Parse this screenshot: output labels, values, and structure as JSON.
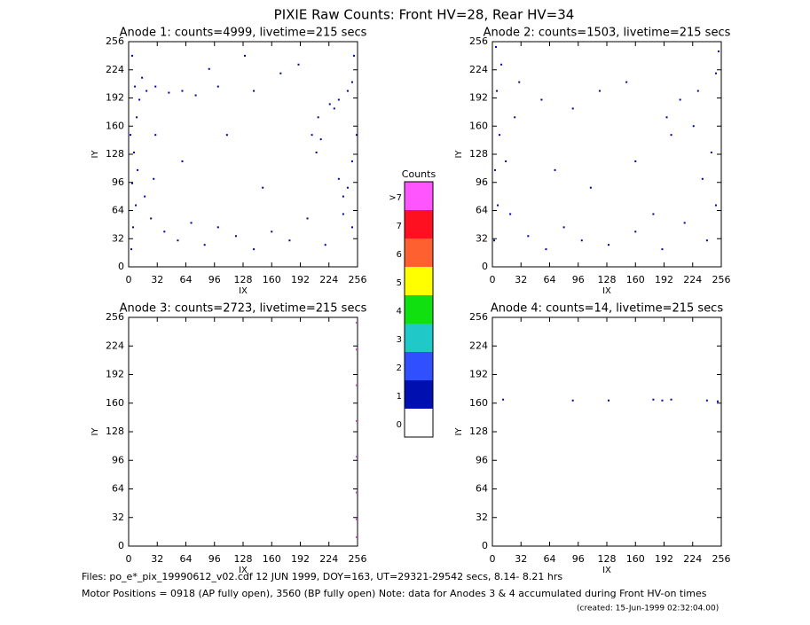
{
  "title": "PIXIE Raw Counts:  Front HV=28, Rear HV=34",
  "chart_data": [
    {
      "type": "scatter",
      "title": "Anode 1: counts=4999, livetime=215 secs",
      "x_label": "IX",
      "y_label": "IY",
      "color": "#0000a0",
      "xlim": [
        0,
        256
      ],
      "ylim": [
        0,
        256
      ],
      "xticks": [
        0,
        32,
        64,
        96,
        128,
        160,
        192,
        224,
        256
      ],
      "yticks": [
        0,
        32,
        64,
        96,
        128,
        160,
        192,
        224,
        256
      ],
      "x": [
        3,
        5,
        8,
        4,
        10,
        6,
        2,
        9,
        12,
        7,
        15,
        4,
        20,
        30,
        45,
        60,
        75,
        25,
        40,
        55,
        70,
        85,
        100,
        120,
        140,
        160,
        180,
        200,
        220,
        240,
        250,
        245,
        235,
        250,
        240,
        210,
        205,
        212,
        225,
        235,
        245,
        250,
        230,
        215,
        255,
        252,
        90,
        130,
        170,
        110,
        60,
        150,
        30,
        18,
        28,
        190,
        100,
        140
      ],
      "y": [
        20,
        45,
        70,
        95,
        110,
        130,
        150,
        170,
        190,
        205,
        215,
        240,
        200,
        205,
        198,
        200,
        195,
        55,
        40,
        30,
        50,
        25,
        45,
        35,
        20,
        40,
        30,
        55,
        25,
        60,
        45,
        90,
        100,
        120,
        80,
        130,
        150,
        170,
        185,
        190,
        200,
        210,
        180,
        145,
        150,
        240,
        225,
        240,
        220,
        150,
        120,
        90,
        150,
        80,
        100,
        230,
        205,
        200
      ]
    },
    {
      "type": "scatter",
      "title": "Anode 2: counts=1503, livetime=215 secs",
      "x_label": "IX",
      "y_label": "IY",
      "color": "#0000a0",
      "xlim": [
        0,
        256
      ],
      "ylim": [
        0,
        256
      ],
      "xticks": [
        0,
        32,
        64,
        96,
        128,
        160,
        192,
        224,
        256
      ],
      "yticks": [
        0,
        32,
        64,
        96,
        128,
        160,
        192,
        224,
        256
      ],
      "x": [
        2,
        6,
        3,
        8,
        5,
        10,
        4,
        20,
        40,
        60,
        80,
        100,
        130,
        160,
        190,
        215,
        240,
        250,
        235,
        245,
        200,
        195,
        210,
        230,
        250,
        253,
        225,
        30,
        55,
        90,
        120,
        150,
        70,
        110,
        160,
        180,
        15,
        25
      ],
      "y": [
        30,
        70,
        110,
        150,
        200,
        230,
        250,
        60,
        35,
        20,
        45,
        30,
        25,
        40,
        20,
        50,
        30,
        70,
        100,
        130,
        150,
        170,
        190,
        200,
        220,
        245,
        160,
        210,
        190,
        180,
        200,
        210,
        110,
        90,
        120,
        60,
        120,
        170
      ]
    },
    {
      "type": "scatter",
      "title": "Anode 3: counts=2723, livetime=215 secs",
      "x_label": "IX",
      "y_label": "IY",
      "color": "#c040c0",
      "xlim": [
        0,
        256
      ],
      "ylim": [
        0,
        256
      ],
      "xticks": [
        0,
        32,
        64,
        96,
        128,
        160,
        192,
        224,
        256
      ],
      "yticks": [
        0,
        32,
        64,
        96,
        128,
        160,
        192,
        224,
        256
      ],
      "x": [
        255,
        255,
        255,
        255,
        255,
        255,
        255,
        255
      ],
      "y": [
        10,
        30,
        60,
        100,
        140,
        180,
        220,
        250
      ]
    },
    {
      "type": "scatter",
      "title": "Anode 4: counts=14, livetime=215 secs",
      "x_label": "IX",
      "y_label": "IY",
      "color": "#0000a0",
      "xlim": [
        0,
        256
      ],
      "ylim": [
        0,
        256
      ],
      "xticks": [
        0,
        32,
        64,
        96,
        128,
        160,
        192,
        224,
        256
      ],
      "yticks": [
        0,
        32,
        64,
        96,
        128,
        160,
        192,
        224,
        256
      ],
      "x": [
        12,
        90,
        130,
        180,
        190,
        200,
        240,
        252
      ],
      "y": [
        164,
        163,
        163,
        164,
        163,
        164,
        163,
        162
      ]
    }
  ],
  "colorbar": {
    "title": "Counts",
    "labels": [
      "0",
      "1",
      "2",
      "3",
      "4",
      "5",
      "6",
      "7",
      ">7"
    ],
    "colors": [
      "#ffffff",
      "#0010b0",
      "#3050ff",
      "#20c8c8",
      "#10e010",
      "#ffff00",
      "#ff6030",
      "#ff1020",
      "#ff55ff"
    ]
  },
  "footer": {
    "files": "Files: po_e*_pix_19990612_v02.cdf    12 JUN 1999, DOY=163, UT=29321-29542 secs,  8.14- 8.21 hrs",
    "motor": "Motor Positions = 0918 (AP fully open), 3560 (BP fully open)    Note: data for Anodes 3 & 4 accumulated during Front HV-on times",
    "created": "(created: 15-Jun-1999 02:32:04.00)"
  }
}
